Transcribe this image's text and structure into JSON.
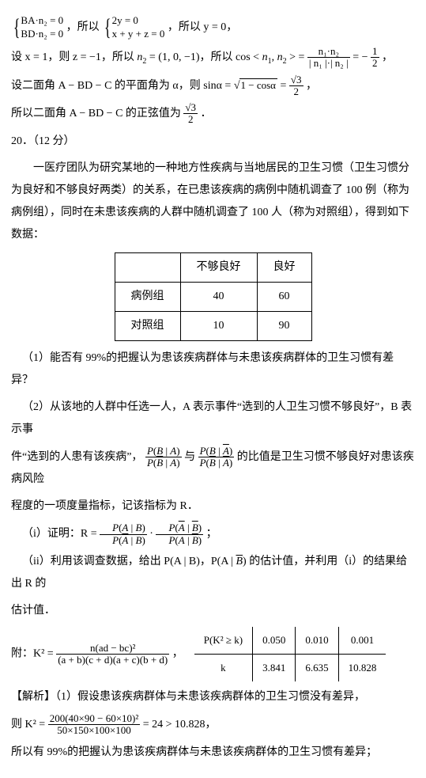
{
  "eq_system1_l1": "BA·n₂ = 0",
  "eq_system1_l2": "BD·n₂ = 0",
  "eq_conj1": "，所以",
  "eq_system2_l1": "2y = 0",
  "eq_system2_l2": "x + y + z = 0",
  "eq_tail1": "，所以 y = 0，",
  "p2_a": "设 x = 1，则 z = −1，所以 ",
  "p2_b": " = (1, 0, −1)，所以 cos < ",
  "p2_c": " > = ",
  "p2_frac_num": "n₁·n₂",
  "p2_frac_den": "| n₁ |·| n₂ |",
  "p2_d": " = − ",
  "p2_half_num": "1",
  "p2_half_den": "2",
  "p2_e": "，",
  "p3_a": "设二面角 A − BD − C  的平面角为 α，则 sinα = ",
  "p3_rad": "1 − cosα",
  "p3_b": " = ",
  "p3_frac_num": "√3",
  "p3_frac_den": "2",
  "p3_c": "，",
  "p4_a": "所以二面角 A − BD − C 的正弦值为 ",
  "p4_frac_num": "√3",
  "p4_frac_den": "2",
  "p4_b": "．",
  "q20_head": "20．（12 分）",
  "q20_p1": "一医疗团队为研究某地的一种地方性疾病与当地居民的卫生习惯（卫生习惯分为良好和不够良好两类）的关系，在已患该疾病的病例中随机调查了 100 例（称为病例组），同时在未患该疾病的人群中随机调查了 100 人（称为对照组），得到如下数据：",
  "tbl_blank": "",
  "tbl_c1": "不够良好",
  "tbl_c2": "良好",
  "tbl_r1": "病例组",
  "tbl_v11": "40",
  "tbl_v12": "60",
  "tbl_r2": "对照组",
  "tbl_v21": "10",
  "tbl_v22": "90",
  "q1": "（1）能否有 99%的把握认为患该疾病群体与未患该疾病群体的卫生习惯有差异？",
  "q2a": "（2）从该地的人群中任选一人，A 表示事件“选到的人卫生习惯不够良好”，B 表示事",
  "q2b_pre": "件“选到的人患有该疾病”，",
  "q2b_mid": " 与 ",
  "q2b_post": " 的比值是卫生习惯不够良好对患该疾病风险",
  "q2c": "程度的一项度量指标，记该指标为 R．",
  "frA_num": "P(B | A)",
  "frA_den": "P(B̄ | A)",
  "frB_num": "P(B | Ā)",
  "frB_den": "P(B̄ | Ā)",
  "qi_pre": "（i）证明：R = ",
  "qi_mid": " · ",
  "qi_post": "；",
  "frC_num": "P(A | B)",
  "frC_den": "P(Ā | B)",
  "frD_num": "P(Ā | B̄)",
  "frD_den": "P(A | B̄)",
  "qii_a": "（ii）利用该调查数据，给出 P(A | B)，P(A | ",
  "qii_bbar": "B",
  "qii_b": ") 的估计值，并利用（i）的结果给出 R 的",
  "qii_c": "估计值．",
  "attach_pre": "附：K² = ",
  "k2_num": "n(ad − bc)²",
  "k2_den": "(a + b)(c + d)(a + c)(b + d)",
  "attach_comma": "，",
  "kt_h": "P(K² ≥ k)",
  "kt_v1": "0.050",
  "kt_v2": "0.010",
  "kt_v3": "0.001",
  "kt_k": "k",
  "kt_k1": "3.841",
  "kt_k2": "6.635",
  "kt_k3": "10.828",
  "ans_head": "【解析】（1）假设患该疾病群体与未患该疾病群体的卫生习惯没有差异，",
  "ans2_pre": "则 K² = ",
  "ans2_num": "200(40×90 − 60×10)²",
  "ans2_den": "50×150×100×100",
  "ans2_post": " = 24 > 10.828，",
  "ans3": "所以有 99%的把握认为患该疾病群体与未患该疾病群体的卫生习惯有差异；"
}
